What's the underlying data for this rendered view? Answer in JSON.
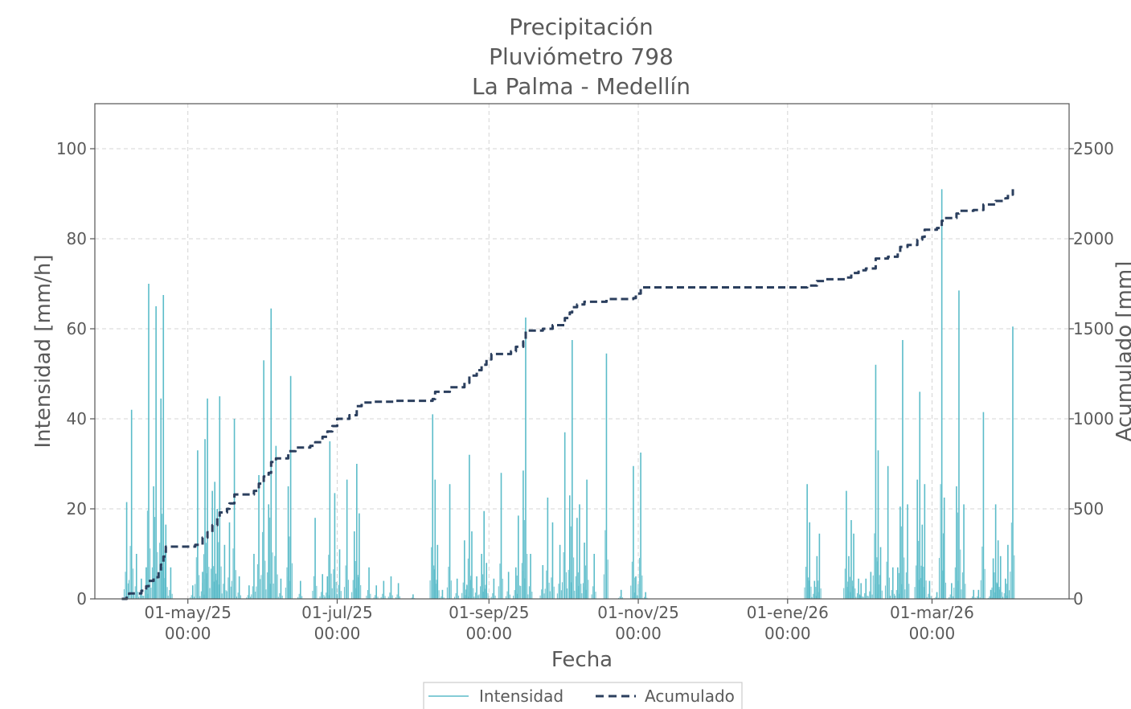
{
  "chart_data": {
    "type": "bar",
    "title": [
      "Precipitación",
      "Pluviómetro 798",
      "La Palma - Medellín"
    ],
    "xlabel": "Fecha",
    "ylabel_left": "Intensidad [mm/h]",
    "ylabel_right": "Acumulado [mm]",
    "x_range": [
      "2025-03-24",
      "2026-04-26"
    ],
    "ylim_left": [
      0,
      110
    ],
    "ylim_right": [
      0,
      2750
    ],
    "yticks_left": [
      "0",
      "20",
      "40",
      "60",
      "80",
      "100"
    ],
    "yticks_right": [
      "0",
      "500",
      "1000",
      "1500",
      "2000",
      "2500"
    ],
    "xticks": [
      {
        "date": "2025-05-01",
        "label1": "01-may/25",
        "label2": "00:00"
      },
      {
        "date": "2025-07-01",
        "label1": "01-jul/25",
        "label2": "00:00"
      },
      {
        "date": "2025-09-01",
        "label1": "01-sep/25",
        "label2": "00:00"
      },
      {
        "date": "2025-11-01",
        "label1": "01-nov/25",
        "label2": "00:00"
      },
      {
        "date": "2026-01-01",
        "label1": "01-ene/26",
        "label2": "00:00"
      },
      {
        "date": "2026-03-01",
        "label1": "01-mar/26",
        "label2": "00:00"
      }
    ],
    "grid": true,
    "legend_position": "bottom-center",
    "series": [
      {
        "name": "Intensidad",
        "kind": "bars",
        "color": "#5bbcc9",
        "points": [
          [
            "2025-04-06",
            21.5
          ],
          [
            "2025-04-08",
            42.0
          ],
          [
            "2025-04-10",
            10.0
          ],
          [
            "2025-04-12",
            4.5
          ],
          [
            "2025-04-14",
            7.0
          ],
          [
            "2025-04-15",
            70.0
          ],
          [
            "2025-04-17",
            25.0
          ],
          [
            "2025-04-18",
            65.0
          ],
          [
            "2025-04-20",
            44.5
          ],
          [
            "2025-04-21",
            67.5
          ],
          [
            "2025-04-22",
            16.5
          ],
          [
            "2025-04-24",
            7.0
          ],
          [
            "2025-05-03",
            3.0
          ],
          [
            "2025-05-05",
            33.0
          ],
          [
            "2025-05-07",
            6.0
          ],
          [
            "2025-05-08",
            35.5
          ],
          [
            "2025-05-09",
            44.5
          ],
          [
            "2025-05-11",
            24.0
          ],
          [
            "2025-05-12",
            26.0
          ],
          [
            "2025-05-13",
            20.0
          ],
          [
            "2025-05-14",
            45.0
          ],
          [
            "2025-05-16",
            12.0
          ],
          [
            "2025-05-18",
            17.0
          ],
          [
            "2025-05-20",
            40.0
          ],
          [
            "2025-05-22",
            5.0
          ],
          [
            "2025-05-26",
            3.0
          ],
          [
            "2025-05-28",
            10.0
          ],
          [
            "2025-05-30",
            27.5
          ],
          [
            "2025-06-01",
            53.0
          ],
          [
            "2025-06-03",
            21.0
          ],
          [
            "2025-06-04",
            64.5
          ],
          [
            "2025-06-06",
            34.0
          ],
          [
            "2025-06-08",
            4.5
          ],
          [
            "2025-06-11",
            25.0
          ],
          [
            "2025-06-12",
            49.5
          ],
          [
            "2025-06-16",
            4.0
          ],
          [
            "2025-06-22",
            18.0
          ],
          [
            "2025-06-25",
            5.5
          ],
          [
            "2025-06-27",
            5.0
          ],
          [
            "2025-06-28",
            35.0
          ],
          [
            "2025-06-30",
            23.5
          ],
          [
            "2025-07-02",
            11.0
          ],
          [
            "2025-07-05",
            26.5
          ],
          [
            "2025-07-08",
            15.0
          ],
          [
            "2025-07-09",
            30.0
          ],
          [
            "2025-07-10",
            19.0
          ],
          [
            "2025-07-14",
            7.0
          ],
          [
            "2025-07-17",
            3.0
          ],
          [
            "2025-07-20",
            4.0
          ],
          [
            "2025-07-23",
            5.0
          ],
          [
            "2025-07-26",
            3.5
          ],
          [
            "2025-08-01",
            1.0
          ],
          [
            "2025-08-09",
            41.0
          ],
          [
            "2025-08-10",
            26.5
          ],
          [
            "2025-08-11",
            12.0
          ],
          [
            "2025-08-13",
            2.0
          ],
          [
            "2025-08-16",
            25.5
          ],
          [
            "2025-08-19",
            4.5
          ],
          [
            "2025-08-22",
            13.0
          ],
          [
            "2025-08-23",
            3.0
          ],
          [
            "2025-08-24",
            32.0
          ],
          [
            "2025-08-25",
            15.0
          ],
          [
            "2025-08-27",
            5.0
          ],
          [
            "2025-08-29",
            10.0
          ],
          [
            "2025-08-30",
            19.5
          ],
          [
            "2025-08-31",
            8.0
          ],
          [
            "2025-09-03",
            4.5
          ],
          [
            "2025-09-06",
            28.0
          ],
          [
            "2025-09-09",
            6.0
          ],
          [
            "2025-09-12",
            7.0
          ],
          [
            "2025-09-13",
            18.5
          ],
          [
            "2025-09-15",
            28.5
          ],
          [
            "2025-09-16",
            62.5
          ],
          [
            "2025-09-18",
            10.0
          ],
          [
            "2025-09-23",
            7.5
          ],
          [
            "2025-09-25",
            22.5
          ],
          [
            "2025-09-27",
            17.0
          ],
          [
            "2025-09-30",
            12.0
          ],
          [
            "2025-10-02",
            37.0
          ],
          [
            "2025-10-04",
            23.0
          ],
          [
            "2025-10-05",
            57.5
          ],
          [
            "2025-10-07",
            18.0
          ],
          [
            "2025-10-08",
            21.0
          ],
          [
            "2025-10-10",
            12.5
          ],
          [
            "2025-10-11",
            26.5
          ],
          [
            "2025-10-14",
            10.0
          ],
          [
            "2025-10-19",
            54.5
          ],
          [
            "2025-10-25",
            2.0
          ],
          [
            "2025-10-30",
            29.5
          ],
          [
            "2025-10-31",
            5.0
          ],
          [
            "2025-11-02",
            32.5
          ],
          [
            "2025-11-04",
            1.5
          ],
          [
            "2026-01-09",
            25.5
          ],
          [
            "2026-01-10",
            17.0
          ],
          [
            "2026-01-12",
            4.0
          ],
          [
            "2026-01-13",
            9.5
          ],
          [
            "2026-01-14",
            14.5
          ],
          [
            "2026-01-25",
            24.0
          ],
          [
            "2026-01-26",
            9.5
          ],
          [
            "2026-01-27",
            17.5
          ],
          [
            "2026-01-28",
            14.5
          ],
          [
            "2026-01-30",
            4.5
          ],
          [
            "2026-01-31",
            3.5
          ],
          [
            "2026-02-02",
            4.5
          ],
          [
            "2026-02-04",
            6.0
          ],
          [
            "2026-02-06",
            52.0
          ],
          [
            "2026-02-07",
            33.0
          ],
          [
            "2026-02-08",
            11.5
          ],
          [
            "2026-02-11",
            29.5
          ],
          [
            "2026-02-13",
            7.0
          ],
          [
            "2026-02-15",
            7.0
          ],
          [
            "2026-02-16",
            20.5
          ],
          [
            "2026-02-17",
            57.5
          ],
          [
            "2026-02-19",
            21.0
          ],
          [
            "2026-02-23",
            26.5
          ],
          [
            "2026-02-24",
            46.0
          ],
          [
            "2026-02-25",
            16.5
          ],
          [
            "2026-02-26",
            25.5
          ],
          [
            "2026-02-28",
            4.0
          ],
          [
            "2026-03-03",
            1.5
          ],
          [
            "2026-03-05",
            91.0
          ],
          [
            "2026-03-06",
            22.5
          ],
          [
            "2026-03-09",
            3.5
          ],
          [
            "2026-03-11",
            25.0
          ],
          [
            "2026-03-12",
            68.5
          ],
          [
            "2026-03-14",
            21.0
          ],
          [
            "2026-03-18",
            2.0
          ],
          [
            "2026-03-20",
            2.0
          ],
          [
            "2026-03-22",
            41.5
          ],
          [
            "2026-03-25",
            2.0
          ],
          [
            "2026-03-26",
            9.0
          ],
          [
            "2026-03-27",
            21.0
          ],
          [
            "2026-03-28",
            13.0
          ],
          [
            "2026-03-29",
            9.5
          ],
          [
            "2026-03-31",
            4.5
          ],
          [
            "2026-04-01",
            12.0
          ],
          [
            "2026-04-03",
            60.5
          ]
        ]
      },
      {
        "name": "Acumulado",
        "kind": "step-line",
        "color": "#2b3f5e",
        "points": [
          [
            "2025-04-04",
            0
          ],
          [
            "2025-04-06",
            15
          ],
          [
            "2025-04-07",
            30
          ],
          [
            "2025-04-12",
            45
          ],
          [
            "2025-04-14",
            70
          ],
          [
            "2025-04-15",
            100
          ],
          [
            "2025-04-17",
            120
          ],
          [
            "2025-04-19",
            150
          ],
          [
            "2025-04-20",
            190
          ],
          [
            "2025-04-21",
            235
          ],
          [
            "2025-04-22",
            290
          ],
          [
            "2025-05-04",
            300
          ],
          [
            "2025-05-07",
            340
          ],
          [
            "2025-05-09",
            370
          ],
          [
            "2025-05-11",
            410
          ],
          [
            "2025-05-13",
            455
          ],
          [
            "2025-05-14",
            480
          ],
          [
            "2025-05-17",
            500
          ],
          [
            "2025-05-18",
            530
          ],
          [
            "2025-05-20",
            580
          ],
          [
            "2025-05-28",
            600
          ],
          [
            "2025-05-30",
            640
          ],
          [
            "2025-06-01",
            680
          ],
          [
            "2025-06-03",
            700
          ],
          [
            "2025-06-04",
            760
          ],
          [
            "2025-06-06",
            780
          ],
          [
            "2025-06-11",
            820
          ],
          [
            "2025-06-14",
            840
          ],
          [
            "2025-06-20",
            850
          ],
          [
            "2025-06-22",
            870
          ],
          [
            "2025-06-25",
            900
          ],
          [
            "2025-06-27",
            930
          ],
          [
            "2025-06-29",
            960
          ],
          [
            "2025-07-01",
            1000
          ],
          [
            "2025-07-06",
            1020
          ],
          [
            "2025-07-09",
            1070
          ],
          [
            "2025-07-11",
            1090
          ],
          [
            "2025-07-16",
            1095
          ],
          [
            "2025-07-24",
            1100
          ],
          [
            "2025-08-09",
            1110
          ],
          [
            "2025-08-10",
            1150
          ],
          [
            "2025-08-16",
            1175
          ],
          [
            "2025-08-22",
            1200
          ],
          [
            "2025-08-24",
            1240
          ],
          [
            "2025-08-27",
            1270
          ],
          [
            "2025-08-29",
            1300
          ],
          [
            "2025-08-31",
            1330
          ],
          [
            "2025-09-02",
            1360
          ],
          [
            "2025-09-10",
            1375
          ],
          [
            "2025-09-12",
            1400
          ],
          [
            "2025-09-15",
            1430
          ],
          [
            "2025-09-16",
            1490
          ],
          [
            "2025-09-23",
            1500
          ],
          [
            "2025-09-27",
            1520
          ],
          [
            "2025-10-02",
            1560
          ],
          [
            "2025-10-04",
            1590
          ],
          [
            "2025-10-05",
            1620
          ],
          [
            "2025-10-07",
            1635
          ],
          [
            "2025-10-10",
            1650
          ],
          [
            "2025-10-19",
            1665
          ],
          [
            "2025-10-30",
            1670
          ],
          [
            "2025-10-31",
            1695
          ],
          [
            "2025-11-02",
            1730
          ],
          [
            "2026-01-09",
            1740
          ],
          [
            "2026-01-13",
            1765
          ],
          [
            "2026-01-16",
            1775
          ],
          [
            "2026-01-25",
            1785
          ],
          [
            "2026-01-27",
            1810
          ],
          [
            "2026-01-30",
            1825
          ],
          [
            "2026-02-02",
            1835
          ],
          [
            "2026-02-06",
            1890
          ],
          [
            "2026-02-11",
            1900
          ],
          [
            "2026-02-15",
            1925
          ],
          [
            "2026-02-16",
            1955
          ],
          [
            "2026-02-19",
            1965
          ],
          [
            "2026-02-23",
            1995
          ],
          [
            "2026-02-25",
            2010
          ],
          [
            "2026-02-26",
            2050
          ],
          [
            "2026-03-03",
            2060
          ],
          [
            "2026-03-05",
            2100
          ],
          [
            "2026-03-06",
            2115
          ],
          [
            "2026-03-11",
            2140
          ],
          [
            "2026-03-12",
            2155
          ],
          [
            "2026-03-18",
            2160
          ],
          [
            "2026-03-22",
            2190
          ],
          [
            "2026-03-27",
            2210
          ],
          [
            "2026-03-31",
            2225
          ],
          [
            "2026-04-01",
            2245
          ],
          [
            "2026-04-03",
            2275
          ]
        ]
      }
    ]
  }
}
